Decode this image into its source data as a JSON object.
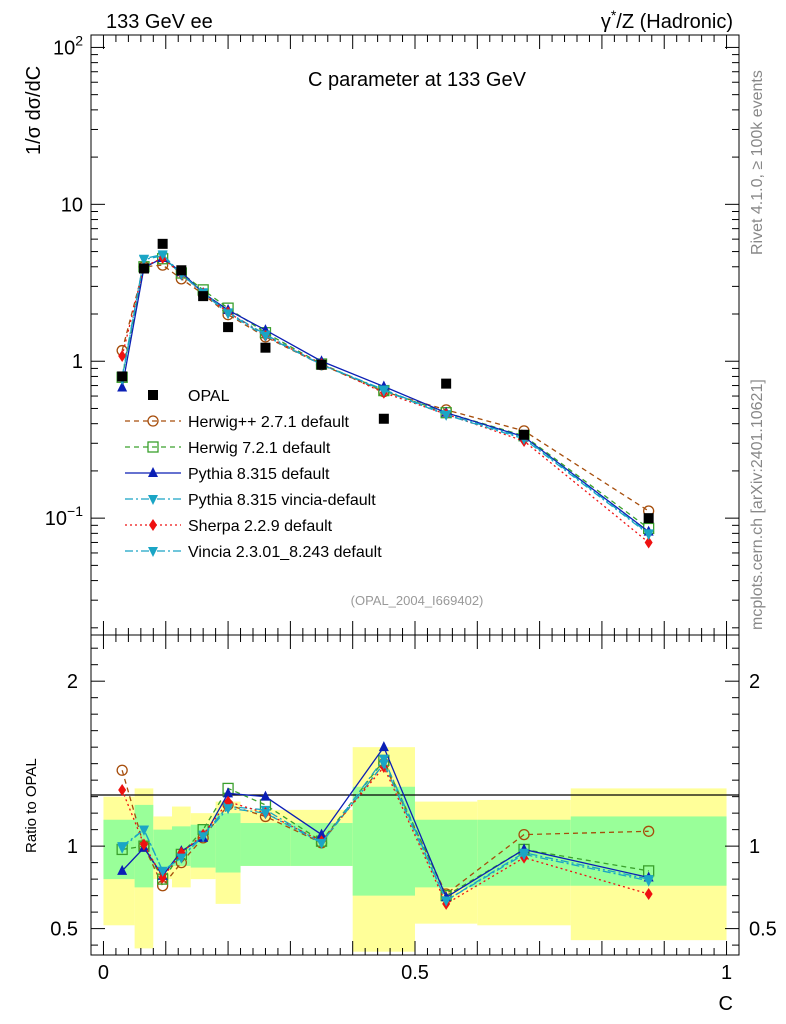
{
  "header": {
    "left": "133 GeV ee",
    "right_prefix": "γ",
    "right_sup": "*",
    "right_suffix": "/Z (Hadronic)"
  },
  "side": {
    "rivet": "Rivet 4.1.0, ≥ 100k events",
    "mcplots": "mcplots.cern.ch [arXiv:2401.10621]"
  },
  "analysis_tag": "(OPAL_2004_I669402)",
  "chart_data": [
    {
      "type": "scatter",
      "title": "C parameter at 133 GeV",
      "ylabel": "1/σ   dσ/dC",
      "yscale": "log",
      "ylim": [
        0.018,
        120
      ],
      "xlim": [
        -0.02,
        1.02
      ],
      "y_ticks": [
        {
          "value": 0.1,
          "label": "10",
          "sup": "−1"
        },
        {
          "value": 1,
          "label": "1",
          "sup": ""
        },
        {
          "value": 10,
          "label": "10",
          "sup": ""
        },
        {
          "value": 100,
          "label": "10",
          "sup": "2"
        }
      ],
      "x": [
        0.03,
        0.065,
        0.095,
        0.125,
        0.16,
        0.2,
        0.26,
        0.35,
        0.45,
        0.55,
        0.675,
        0.875
      ],
      "bin_edges": [
        0.0,
        0.05,
        0.08,
        0.11,
        0.14,
        0.18,
        0.22,
        0.3,
        0.4,
        0.5,
        0.6,
        0.75,
        1.0
      ],
      "data": {
        "name": "OPAL",
        "values": [
          0.8,
          3.9,
          5.6,
          3.8,
          2.6,
          1.65,
          1.22,
          0.95,
          0.43,
          0.72,
          0.34,
          0.1
        ]
      },
      "series": [
        {
          "name": "Herwig++ 2.7.1 default",
          "color": "#a64d0b",
          "dash": "5,4",
          "marker": "circle",
          "values": [
            1.17,
            4.0,
            4.1,
            3.35,
            2.68,
            1.98,
            1.43,
            0.95,
            0.64,
            0.49,
            0.36,
            0.111
          ]
        },
        {
          "name": "Herwig 7.2.1 default",
          "color": "#3aa02c",
          "dash": "5,4",
          "marker": "square",
          "values": [
            0.79,
            4.0,
            4.5,
            3.65,
            2.85,
            2.18,
            1.52,
            0.96,
            0.65,
            0.47,
            0.335,
            0.086
          ]
        },
        {
          "name": "Pythia 8.315 default",
          "color": "#0b1fb5",
          "dash": "",
          "marker": "triangle-up",
          "values": [
            0.68,
            3.95,
            4.55,
            3.7,
            2.72,
            2.12,
            1.58,
            1.0,
            0.69,
            0.47,
            0.33,
            0.082
          ]
        },
        {
          "name": "Pythia 8.315 vincia-default",
          "color": "#1aa5c5",
          "dash": "8,3,2,3",
          "marker": "triangle-down",
          "values": [
            0.8,
            4.45,
            4.7,
            3.55,
            2.75,
            2.05,
            1.48,
            0.95,
            0.66,
            0.46,
            0.325,
            0.08
          ]
        },
        {
          "name": "Sherpa 2.2.9 default",
          "color": "#ee1111",
          "dash": "2,3",
          "marker": "diamond",
          "values": [
            1.08,
            4.0,
            4.55,
            3.6,
            2.7,
            2.05,
            1.45,
            0.96,
            0.63,
            0.46,
            0.31,
            0.07
          ]
        },
        {
          "name": "Vincia 2.3.01_8.243 default",
          "color": "#1aa5c5",
          "dash": "8,3,2,3",
          "marker": "triangle-down",
          "values": [
            0.77,
            4.5,
            4.8,
            3.6,
            2.72,
            2.02,
            1.45,
            0.95,
            0.65,
            0.455,
            0.32,
            0.079
          ]
        }
      ]
    },
    {
      "type": "scatter",
      "ylabel": "Ratio to OPAL",
      "xlabel": "C",
      "ylim": [
        0.34,
        2.28
      ],
      "xlim": [
        -0.02,
        1.02
      ],
      "y_ticks": [
        0.5,
        1,
        2
      ],
      "x_ticks": [
        0,
        0.5,
        1
      ],
      "reference": 1,
      "bands": [
        {
          "lo68": 0.8,
          "hi68": 1.16,
          "lo95": 0.52,
          "hi95": 1.3
        },
        {
          "lo68": 0.75,
          "hi68": 1.25,
          "lo95": 0.38,
          "hi95": 1.35
        },
        {
          "lo68": 0.86,
          "hi68": 1.1,
          "lo95": 0.8,
          "hi95": 1.18
        },
        {
          "lo68": 0.88,
          "hi68": 1.12,
          "lo95": 0.75,
          "hi95": 1.24
        },
        {
          "lo68": 0.87,
          "hi68": 1.13,
          "lo95": 0.8,
          "hi95": 1.2
        },
        {
          "lo68": 0.84,
          "hi68": 1.2,
          "lo95": 0.65,
          "hi95": 1.27
        },
        {
          "lo68": 0.88,
          "hi68": 1.14,
          "lo95": 0.88,
          "hi95": 1.22
        },
        {
          "lo68": 0.88,
          "hi68": 1.14,
          "lo95": 0.88,
          "hi95": 1.22
        },
        {
          "lo68": 0.7,
          "hi68": 1.36,
          "lo95": 0.36,
          "hi95": 1.6
        },
        {
          "lo68": 0.75,
          "hi68": 1.16,
          "lo95": 0.53,
          "hi95": 1.27
        },
        {
          "lo68": 0.76,
          "hi68": 1.16,
          "lo95": 0.52,
          "hi95": 1.28
        },
        {
          "lo68": 0.76,
          "hi68": 1.18,
          "lo95": 0.43,
          "hi95": 1.35
        }
      ],
      "series": [
        {
          "name": "Herwig++ 2.7.1 default",
          "values": [
            1.46,
            1.0,
            0.76,
            0.9,
            1.05,
            1.25,
            1.18,
            1.02,
            1.5,
            0.71,
            1.07,
            1.09
          ]
        },
        {
          "name": "Herwig 7.2.1 default",
          "values": [
            0.98,
            1.0,
            0.8,
            0.95,
            1.1,
            1.35,
            1.25,
            1.03,
            1.52,
            0.7,
            0.98,
            0.85
          ]
        },
        {
          "name": "Pythia 8.315 default",
          "values": [
            0.85,
            0.99,
            0.82,
            0.97,
            1.05,
            1.32,
            1.3,
            1.07,
            1.6,
            0.69,
            0.98,
            0.81
          ]
        },
        {
          "name": "Pythia 8.315 vincia-default",
          "values": [
            1.0,
            1.1,
            0.85,
            0.93,
            1.07,
            1.24,
            1.22,
            1.02,
            1.53,
            0.67,
            0.96,
            0.8
          ]
        },
        {
          "name": "Sherpa 2.2.9 default",
          "values": [
            1.34,
            1.01,
            0.81,
            0.96,
            1.07,
            1.27,
            1.2,
            1.03,
            1.48,
            0.65,
            0.93,
            0.71
          ]
        },
        {
          "name": "Vincia 2.3.01_8.243 default",
          "values": [
            0.99,
            1.1,
            0.85,
            0.93,
            1.06,
            1.23,
            1.2,
            1.02,
            1.5,
            0.67,
            0.95,
            0.79
          ]
        }
      ]
    }
  ]
}
